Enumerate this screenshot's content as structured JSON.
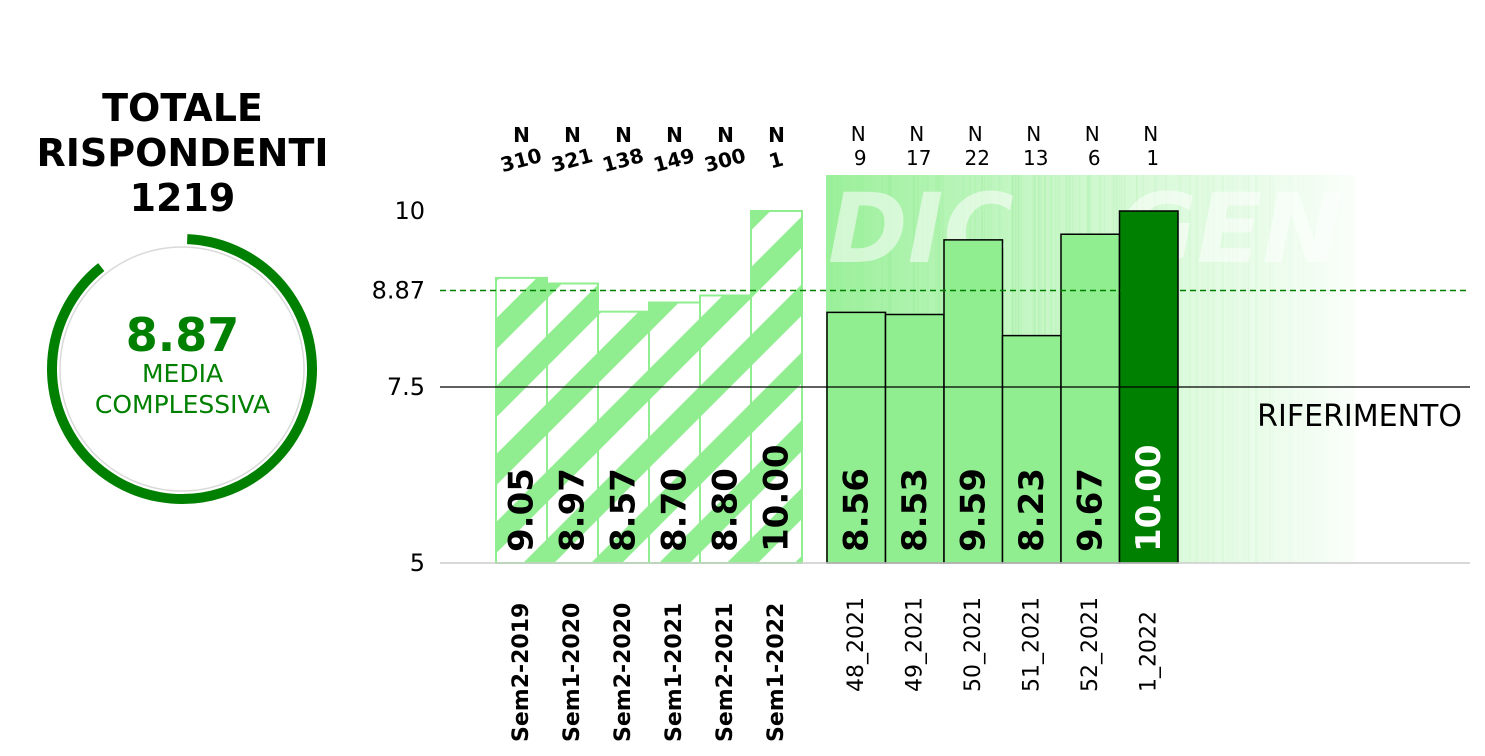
{
  "summary": {
    "title_line1": "TOTALE",
    "title_line2": "RISPONDENTI",
    "total_respondents": "1219",
    "mean_value": "8.87",
    "mean_label_line1": "MEDIA",
    "mean_label_line2": "COMPLESSIVA",
    "gauge_fraction": 0.887
  },
  "colors": {
    "dark_green": "#008000",
    "light_green": "#90ee90",
    "black": "#000000"
  },
  "chart_data": {
    "type": "bar",
    "ylim": [
      5,
      10.5
    ],
    "yticks": [
      "5",
      "7.5",
      "8.87",
      "10"
    ],
    "mean_line": 8.87,
    "reference_line": 7.5,
    "reference_label": "RIFERIMENTO",
    "watermark": "DIC GEN",
    "semesters": {
      "categories": [
        "Sem2-2019",
        "Sem1-2020",
        "Sem2-2020",
        "Sem1-2021",
        "Sem2-2021",
        "Sem1-2022"
      ],
      "values": [
        9.05,
        8.97,
        8.57,
        8.7,
        8.8,
        10.0
      ],
      "value_labels": [
        "9.05",
        "8.97",
        "8.57",
        "8.70",
        "8.80",
        "10.00"
      ],
      "n_label": "N",
      "n_values": [
        "310",
        "321",
        "138",
        "149",
        "300",
        "1"
      ],
      "style": "hatched"
    },
    "weeks": {
      "categories": [
        "48_2021",
        "49_2021",
        "50_2021",
        "51_2021",
        "52_2021",
        "1_2022"
      ],
      "values": [
        8.56,
        8.53,
        9.59,
        8.23,
        9.67,
        10.0
      ],
      "value_labels": [
        "8.56",
        "8.53",
        "9.59",
        "8.23",
        "9.67",
        "10.00"
      ],
      "n_label": "N",
      "n_values": [
        "9",
        "17",
        "22",
        "13",
        "6",
        "1"
      ],
      "highlight_index": 5
    }
  }
}
